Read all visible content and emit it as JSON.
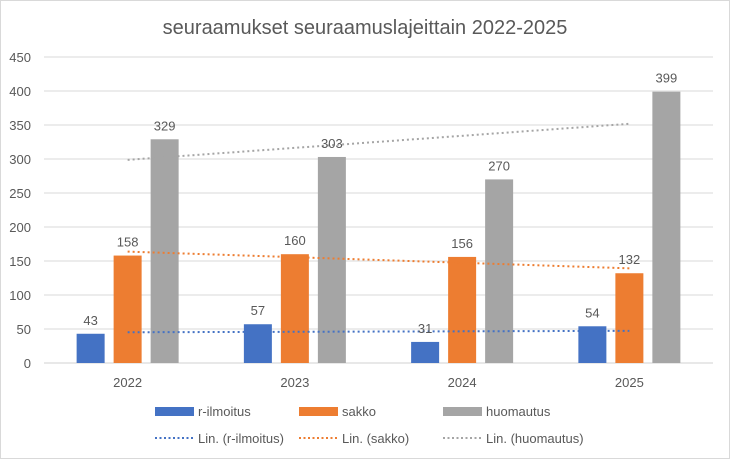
{
  "chart_data": {
    "type": "bar",
    "title": "seuraamukset seuraamuslajeittain 2022-2025",
    "xlabel": "",
    "ylabel": "",
    "categories": [
      "2022",
      "2023",
      "2024",
      "2025"
    ],
    "ylim": [
      0,
      450
    ],
    "yticks": [
      0,
      50,
      100,
      150,
      200,
      250,
      300,
      350,
      400,
      450
    ],
    "grid": true,
    "legend_position": "bottom",
    "series": [
      {
        "name": "r-ilmoitus",
        "color": "#4472c4",
        "values": [
          43,
          57,
          31,
          54
        ]
      },
      {
        "name": "sakko",
        "color": "#ed7d31",
        "values": [
          158,
          160,
          156,
          132
        ]
      },
      {
        "name": "huomautus",
        "color": "#a5a5a5",
        "values": [
          329,
          303,
          270,
          399
        ]
      }
    ],
    "trendlines": [
      {
        "name": "Lin. (r-ilmoitus)",
        "color": "#4472c4",
        "type": "linear",
        "series": "r-ilmoitus"
      },
      {
        "name": "Lin. (sakko)",
        "color": "#ed7d31",
        "type": "linear",
        "series": "sakko"
      },
      {
        "name": "Lin. (huomautus)",
        "color": "#a5a5a5",
        "type": "linear",
        "series": "huomautus"
      }
    ]
  }
}
